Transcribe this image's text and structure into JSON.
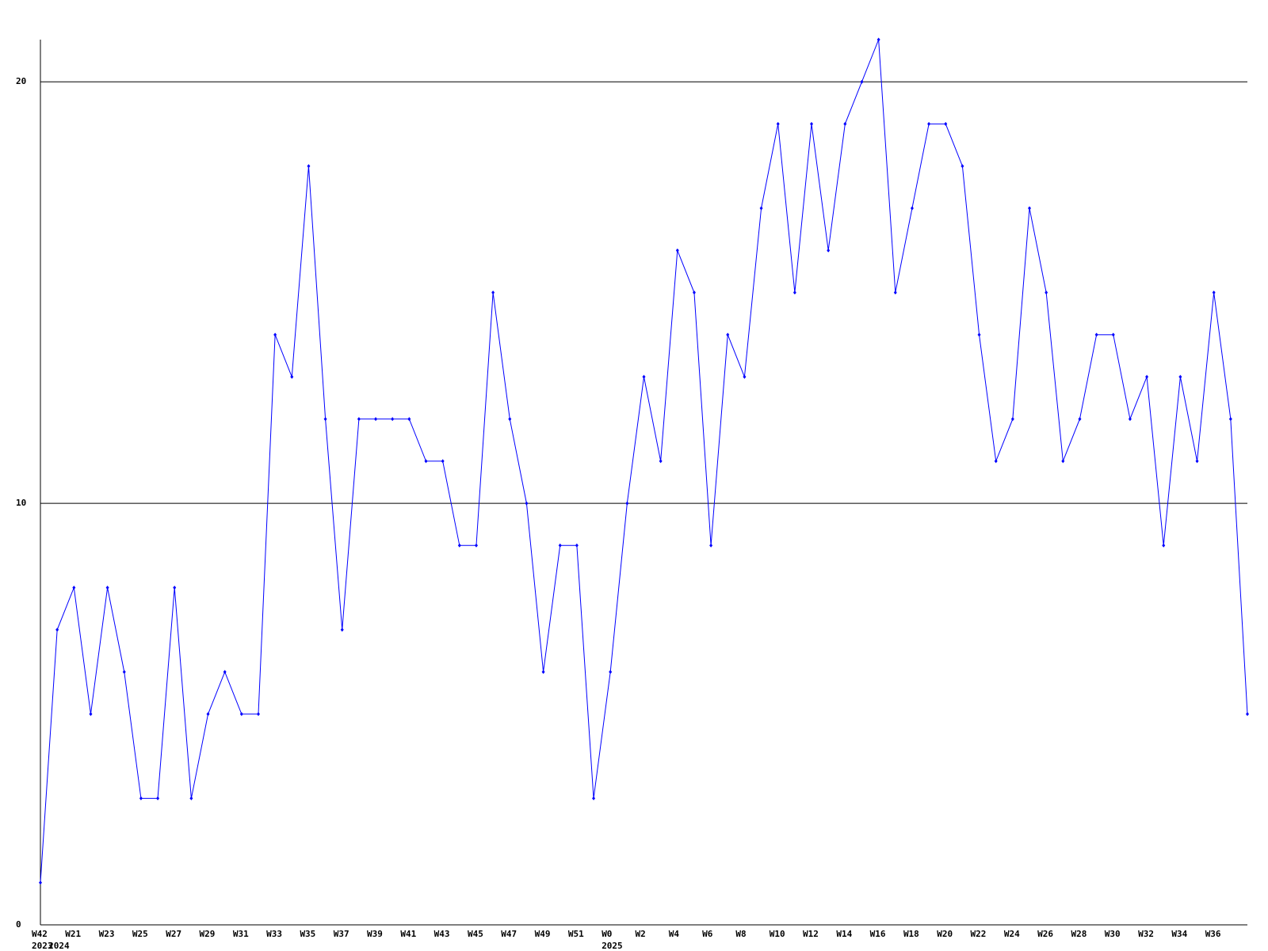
{
  "chart_data": {
    "type": "line",
    "categories": [
      "W42",
      null,
      "W21",
      null,
      "W23",
      null,
      "W25",
      null,
      "W27",
      null,
      "W29",
      null,
      "W31",
      null,
      "W33",
      null,
      "W35",
      null,
      "W37",
      null,
      "W39",
      null,
      "W41",
      null,
      "W43",
      null,
      "W45",
      null,
      "W47",
      null,
      "W49",
      null,
      "W51",
      null,
      "W0",
      null,
      "W2",
      null,
      "W4",
      null,
      "W6",
      null,
      "W8",
      null,
      "W10",
      null,
      "W12",
      null,
      "W14",
      null,
      "W16",
      null,
      "W18",
      null,
      "W20",
      null,
      "W22",
      null,
      "W24",
      null,
      "W26",
      null,
      "W28",
      null,
      "W30",
      null,
      "W32",
      null,
      "W34",
      null,
      "W36",
      null,
      null
    ],
    "years": [
      "2023",
      "2024",
      null,
      null,
      null,
      null,
      null,
      null,
      null,
      null,
      null,
      null,
      null,
      null,
      null,
      null,
      null,
      null,
      null,
      null,
      null,
      null,
      null,
      null,
      null,
      null,
      null,
      null,
      null,
      null,
      null,
      null,
      null,
      null,
      "2025",
      null,
      null,
      null,
      null,
      null,
      null,
      null,
      null,
      null,
      null,
      null,
      null,
      null,
      null,
      null,
      null,
      null,
      null,
      null,
      null,
      null,
      null,
      null,
      null,
      null,
      null,
      null,
      null,
      null,
      null,
      null,
      null,
      null,
      null,
      null,
      null,
      null,
      null
    ],
    "series": [
      {
        "color": "#0000ff",
        "values": [
          1,
          7,
          8,
          5,
          8,
          6,
          3,
          3,
          8,
          3,
          5,
          6,
          5,
          5,
          14,
          13,
          18,
          12,
          7,
          12,
          12,
          12,
          12,
          11,
          11,
          9,
          9,
          15,
          12,
          10,
          6,
          9,
          9,
          3,
          6,
          10,
          13,
          11,
          16,
          15,
          9,
          14,
          13,
          17,
          19,
          15,
          19,
          16,
          19,
          20,
          21,
          15,
          17,
          19,
          19,
          18,
          14,
          11,
          12,
          17,
          15,
          11,
          12,
          14,
          14,
          12,
          13,
          9,
          13,
          11,
          15,
          12,
          5
        ]
      }
    ],
    "ylim": [
      0,
      21
    ],
    "yticks": [
      0,
      10,
      20
    ],
    "grid": true
  }
}
